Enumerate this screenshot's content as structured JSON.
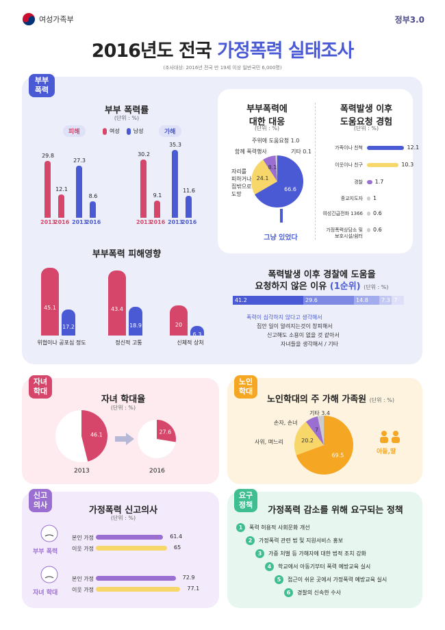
{
  "header": {
    "ministry": "여성가족부",
    "gov_logo": "정부3.0"
  },
  "main_title": {
    "part1": "2016년도 전국 ",
    "part2": "가정폭력 실태조사"
  },
  "subtitle": "(조사대상: 2016년 전국 만 19세 이상 일반국민 6,000명)",
  "colors": {
    "red": "#d6466b",
    "blue": "#4a5ad4",
    "purple": "#9a6fd1",
    "yellow": "#f7d66a",
    "orange": "#f5a623",
    "mint": "#3fbf8f",
    "lightblue": "#eceef9"
  },
  "sections": {
    "spouse": "부부\n폭력",
    "child": "자녀\n학대",
    "elder": "노인\n학대",
    "report": "신고\n의사",
    "policy": "요구\n정책"
  },
  "spouse_rate": {
    "title": "부부 폭력률",
    "unit": "(단위 : %)",
    "victim_label": "피해",
    "perp_label": "가해",
    "legend_female": "여성",
    "legend_male": "남성",
    "years": [
      "2013",
      "2016",
      "2013",
      "2016"
    ]
  },
  "response": {
    "title": "부부폭력에\n대한 대응",
    "unit": "(단위 : %)",
    "labels": [
      "그냥 있었다",
      "자리를 피하거나 집밖으로 도망",
      "함께 폭력행사",
      "주위에 도움요청 1.0",
      "기타 0.1"
    ],
    "label_flee": "자리를\n피하거나\n집밖으로\n도망",
    "label_together": "함께 폭력행사",
    "label_help": "주위에 도움요청 1.0",
    "label_etc": "기타 0.1",
    "caption": "그냥 있었다"
  },
  "help_request": {
    "title": "폭력발생 이후\n도움요청 경험",
    "unit": "(단위 : %)"
  },
  "impact": {
    "title": "부부폭력 피해영향",
    "labels": [
      "위협이나 공포심 정도",
      "정신적 고통",
      "신체적 상처"
    ]
  },
  "reasons": {
    "title_a": "폭력발생 이후 경찰에 도움을",
    "title_b": "요청하지 않은 이유",
    "title_rank": "(1순위)",
    "unit": "(단위 : %)",
    "labels": [
      "폭력이 심각하지 않다고 생각해서",
      "집안 일이 알려지는것이 창피해서",
      "신고해도 소용이 없을 것 같아서",
      "자녀들을 생각해서 / 기타"
    ]
  },
  "child_abuse": {
    "title": "자녀 학대율",
    "unit": "(단위 : %)",
    "years": [
      "2013",
      "2016"
    ]
  },
  "elder_abuse": {
    "title": "노인학대의 주 가해 가족원",
    "unit": "(단위 : %)",
    "label_grand": "손자, 손녀",
    "label_etc": "기타 3.4",
    "label_inlaw": "사위, 며느리",
    "label_son": "아들,딸"
  },
  "report_intent": {
    "title": "가정폭력 신고의사",
    "unit": "(단위 : %)",
    "group1": "부부 폭력",
    "group2": "자녀 학대",
    "self": "본인 가정",
    "neighbor": "이웃 가정"
  },
  "policies": {
    "title": "가정폭력 감소를 위해 요구되는 정책",
    "items": [
      "폭력 허용적 사회문화 개선",
      "가정폭력 관련 법 및 지원서비스 홍보",
      "가중 처벌 등 가해자에 대한 법적 조치 강화",
      "학교에서 아동기부터 폭력 예방교육 실시",
      "접근이 쉬운 곳에서 가정폭력 예방교육 실시",
      "경찰의 신속한 수사"
    ],
    "nums": [
      "1",
      "2",
      "3",
      "4",
      "5",
      "6"
    ]
  },
  "chart_data": [
    {
      "type": "bar",
      "title": "부부 폭력률",
      "categories": [
        "피해 2013",
        "피해 2016",
        "가해 2013",
        "가해 2016"
      ],
      "series": [
        {
          "name": "여성",
          "values": [
            29.8,
            12.1,
            30.2,
            9.1
          ]
        },
        {
          "name": "남성",
          "values": [
            27.3,
            8.6,
            35.3,
            11.6
          ]
        }
      ]
    },
    {
      "type": "pie",
      "title": "부부폭력에 대한 대응",
      "labels": [
        "그냥 있었다",
        "자리를 피하거나 집밖으로 도망",
        "함께 폭력행사",
        "주위에 도움요청",
        "기타"
      ],
      "values": [
        66.6,
        24.1,
        8.1,
        1.0,
        0.1
      ]
    },
    {
      "type": "bar",
      "title": "폭력발생 이후 도움요청 경험",
      "categories": [
        "가족이나 친척",
        "이웃이나 친구",
        "경찰",
        "종교지도자",
        "여성긴급전화 1366",
        "가정폭력상담소 및 보호시설/쉼터"
      ],
      "values": [
        12.1,
        10.3,
        1.7,
        1.0,
        0.6,
        0.6
      ]
    },
    {
      "type": "bar",
      "title": "부부폭력 피해영향",
      "categories": [
        "위협이나 공포심 정도",
        "정신적 고통",
        "신체적 상처"
      ],
      "series": [
        {
          "name": "여성",
          "values": [
            45.1,
            43.4,
            20.0
          ]
        },
        {
          "name": "남성",
          "values": [
            17.2,
            18.9,
            6.3
          ]
        }
      ]
    },
    {
      "type": "bar",
      "title": "폭력발생 이후 경찰에 도움을 요청하지 않은 이유 (1순위)",
      "categories": [
        "폭력이 심각하지 않다고 생각해서",
        "집안 일이 알려지는것이 창피해서",
        "신고해도 소용이 없을 것 같아서",
        "자녀들을 생각해서",
        "기타"
      ],
      "values": [
        41.2,
        29.6,
        14.8,
        7.3,
        7.0
      ]
    },
    {
      "type": "pie",
      "title": "자녀 학대율",
      "categories": [
        "2013",
        "2016"
      ],
      "values": [
        46.1,
        27.6
      ]
    },
    {
      "type": "pie",
      "title": "노인학대의 주 가해 가족원",
      "labels": [
        "아들,딸",
        "사위, 며느리",
        "손자, 손녀",
        "기타"
      ],
      "values": [
        69.5,
        20.2,
        7.0,
        3.4
      ]
    },
    {
      "type": "bar",
      "title": "가정폭력 신고의사",
      "categories": [
        "부부 폭력 본인 가정",
        "부부 폭력 이웃 가정",
        "자녀 학대 본인 가정",
        "자녀 학대 이웃 가정"
      ],
      "values": [
        61.4,
        65.0,
        72.9,
        77.1
      ]
    }
  ]
}
